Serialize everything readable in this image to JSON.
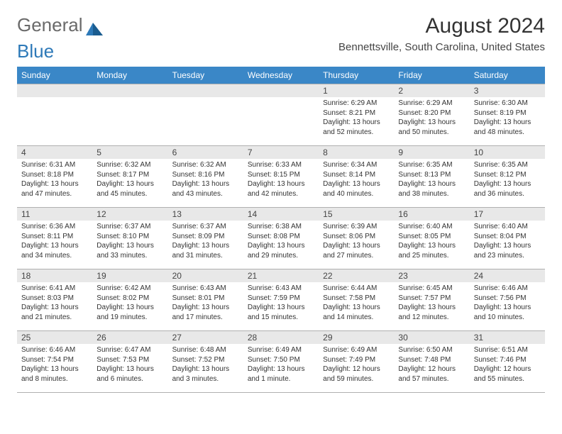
{
  "logo": {
    "text1": "General",
    "text2": "Blue"
  },
  "title": "August 2024",
  "subtitle": "Bennettsville, South Carolina, United States",
  "colors": {
    "header_bg": "#3a87c7",
    "daynum_bg": "#e8e8e8",
    "rule": "#b0b0b0",
    "text": "#333333",
    "logo_gray": "#6a6a6a",
    "logo_blue": "#2d79b8"
  },
  "fonts": {
    "title_size": 30,
    "subtitle_size": 15,
    "dow_size": 12,
    "daynum_size": 12,
    "body_size": 10
  },
  "days_of_week": [
    "Sunday",
    "Monday",
    "Tuesday",
    "Wednesday",
    "Thursday",
    "Friday",
    "Saturday"
  ],
  "weeks": [
    [
      {
        "day": "",
        "sunrise": "",
        "sunset": "",
        "daylight": ""
      },
      {
        "day": "",
        "sunrise": "",
        "sunset": "",
        "daylight": ""
      },
      {
        "day": "",
        "sunrise": "",
        "sunset": "",
        "daylight": ""
      },
      {
        "day": "",
        "sunrise": "",
        "sunset": "",
        "daylight": ""
      },
      {
        "day": "1",
        "sunrise": "Sunrise: 6:29 AM",
        "sunset": "Sunset: 8:21 PM",
        "daylight": "Daylight: 13 hours and 52 minutes."
      },
      {
        "day": "2",
        "sunrise": "Sunrise: 6:29 AM",
        "sunset": "Sunset: 8:20 PM",
        "daylight": "Daylight: 13 hours and 50 minutes."
      },
      {
        "day": "3",
        "sunrise": "Sunrise: 6:30 AM",
        "sunset": "Sunset: 8:19 PM",
        "daylight": "Daylight: 13 hours and 48 minutes."
      }
    ],
    [
      {
        "day": "4",
        "sunrise": "Sunrise: 6:31 AM",
        "sunset": "Sunset: 8:18 PM",
        "daylight": "Daylight: 13 hours and 47 minutes."
      },
      {
        "day": "5",
        "sunrise": "Sunrise: 6:32 AM",
        "sunset": "Sunset: 8:17 PM",
        "daylight": "Daylight: 13 hours and 45 minutes."
      },
      {
        "day": "6",
        "sunrise": "Sunrise: 6:32 AM",
        "sunset": "Sunset: 8:16 PM",
        "daylight": "Daylight: 13 hours and 43 minutes."
      },
      {
        "day": "7",
        "sunrise": "Sunrise: 6:33 AM",
        "sunset": "Sunset: 8:15 PM",
        "daylight": "Daylight: 13 hours and 42 minutes."
      },
      {
        "day": "8",
        "sunrise": "Sunrise: 6:34 AM",
        "sunset": "Sunset: 8:14 PM",
        "daylight": "Daylight: 13 hours and 40 minutes."
      },
      {
        "day": "9",
        "sunrise": "Sunrise: 6:35 AM",
        "sunset": "Sunset: 8:13 PM",
        "daylight": "Daylight: 13 hours and 38 minutes."
      },
      {
        "day": "10",
        "sunrise": "Sunrise: 6:35 AM",
        "sunset": "Sunset: 8:12 PM",
        "daylight": "Daylight: 13 hours and 36 minutes."
      }
    ],
    [
      {
        "day": "11",
        "sunrise": "Sunrise: 6:36 AM",
        "sunset": "Sunset: 8:11 PM",
        "daylight": "Daylight: 13 hours and 34 minutes."
      },
      {
        "day": "12",
        "sunrise": "Sunrise: 6:37 AM",
        "sunset": "Sunset: 8:10 PM",
        "daylight": "Daylight: 13 hours and 33 minutes."
      },
      {
        "day": "13",
        "sunrise": "Sunrise: 6:37 AM",
        "sunset": "Sunset: 8:09 PM",
        "daylight": "Daylight: 13 hours and 31 minutes."
      },
      {
        "day": "14",
        "sunrise": "Sunrise: 6:38 AM",
        "sunset": "Sunset: 8:08 PM",
        "daylight": "Daylight: 13 hours and 29 minutes."
      },
      {
        "day": "15",
        "sunrise": "Sunrise: 6:39 AM",
        "sunset": "Sunset: 8:06 PM",
        "daylight": "Daylight: 13 hours and 27 minutes."
      },
      {
        "day": "16",
        "sunrise": "Sunrise: 6:40 AM",
        "sunset": "Sunset: 8:05 PM",
        "daylight": "Daylight: 13 hours and 25 minutes."
      },
      {
        "day": "17",
        "sunrise": "Sunrise: 6:40 AM",
        "sunset": "Sunset: 8:04 PM",
        "daylight": "Daylight: 13 hours and 23 minutes."
      }
    ],
    [
      {
        "day": "18",
        "sunrise": "Sunrise: 6:41 AM",
        "sunset": "Sunset: 8:03 PM",
        "daylight": "Daylight: 13 hours and 21 minutes."
      },
      {
        "day": "19",
        "sunrise": "Sunrise: 6:42 AM",
        "sunset": "Sunset: 8:02 PM",
        "daylight": "Daylight: 13 hours and 19 minutes."
      },
      {
        "day": "20",
        "sunrise": "Sunrise: 6:43 AM",
        "sunset": "Sunset: 8:01 PM",
        "daylight": "Daylight: 13 hours and 17 minutes."
      },
      {
        "day": "21",
        "sunrise": "Sunrise: 6:43 AM",
        "sunset": "Sunset: 7:59 PM",
        "daylight": "Daylight: 13 hours and 15 minutes."
      },
      {
        "day": "22",
        "sunrise": "Sunrise: 6:44 AM",
        "sunset": "Sunset: 7:58 PM",
        "daylight": "Daylight: 13 hours and 14 minutes."
      },
      {
        "day": "23",
        "sunrise": "Sunrise: 6:45 AM",
        "sunset": "Sunset: 7:57 PM",
        "daylight": "Daylight: 13 hours and 12 minutes."
      },
      {
        "day": "24",
        "sunrise": "Sunrise: 6:46 AM",
        "sunset": "Sunset: 7:56 PM",
        "daylight": "Daylight: 13 hours and 10 minutes."
      }
    ],
    [
      {
        "day": "25",
        "sunrise": "Sunrise: 6:46 AM",
        "sunset": "Sunset: 7:54 PM",
        "daylight": "Daylight: 13 hours and 8 minutes."
      },
      {
        "day": "26",
        "sunrise": "Sunrise: 6:47 AM",
        "sunset": "Sunset: 7:53 PM",
        "daylight": "Daylight: 13 hours and 6 minutes."
      },
      {
        "day": "27",
        "sunrise": "Sunrise: 6:48 AM",
        "sunset": "Sunset: 7:52 PM",
        "daylight": "Daylight: 13 hours and 3 minutes."
      },
      {
        "day": "28",
        "sunrise": "Sunrise: 6:49 AM",
        "sunset": "Sunset: 7:50 PM",
        "daylight": "Daylight: 13 hours and 1 minute."
      },
      {
        "day": "29",
        "sunrise": "Sunrise: 6:49 AM",
        "sunset": "Sunset: 7:49 PM",
        "daylight": "Daylight: 12 hours and 59 minutes."
      },
      {
        "day": "30",
        "sunrise": "Sunrise: 6:50 AM",
        "sunset": "Sunset: 7:48 PM",
        "daylight": "Daylight: 12 hours and 57 minutes."
      },
      {
        "day": "31",
        "sunrise": "Sunrise: 6:51 AM",
        "sunset": "Sunset: 7:46 PM",
        "daylight": "Daylight: 12 hours and 55 minutes."
      }
    ]
  ]
}
